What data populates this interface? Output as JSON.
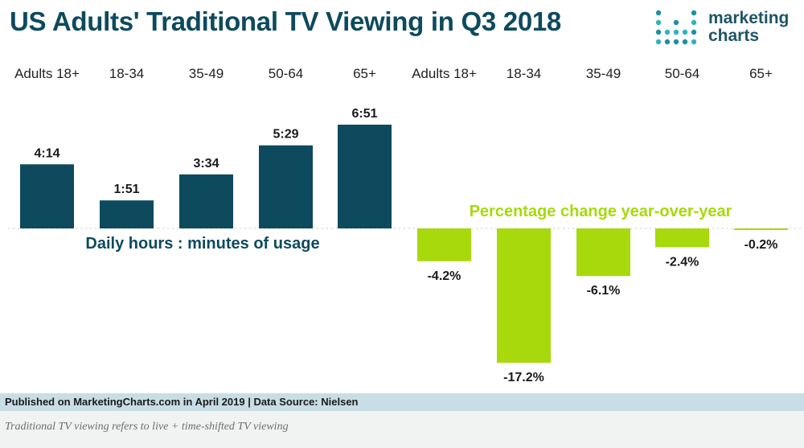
{
  "title": "US Adults' Traditional TV Viewing in Q3 2018",
  "logo": {
    "line1": "marketing",
    "line2": "charts"
  },
  "chart_data": [
    {
      "type": "bar",
      "caption": "Daily hours : minutes of usage",
      "categories": [
        "Adults 18+",
        "18-34",
        "35-49",
        "50-64",
        "65+"
      ],
      "values": [
        254,
        111,
        214,
        329,
        411
      ],
      "value_unit": "minutes",
      "value_labels": [
        "4:14",
        "1:51",
        "3:34",
        "5:29",
        "6:51"
      ],
      "color": "#0d4a5e"
    },
    {
      "type": "bar",
      "caption": "Percentage change year-over-year",
      "categories": [
        "Adults 18+",
        "18-34",
        "35-49",
        "50-64",
        "65+"
      ],
      "values": [
        -4.2,
        -17.2,
        -6.1,
        -2.4,
        -0.2
      ],
      "value_unit": "%",
      "value_labels": [
        "-4.2%",
        "-17.2%",
        "-6.1%",
        "-2.4%",
        "-0.2%"
      ],
      "color": "#a8d90c"
    }
  ],
  "footer": "Published on MarketingCharts.com in April 2019 | Data Source: Nielsen",
  "note": "Traditional TV viewing refers to live + time-shifted TV viewing"
}
